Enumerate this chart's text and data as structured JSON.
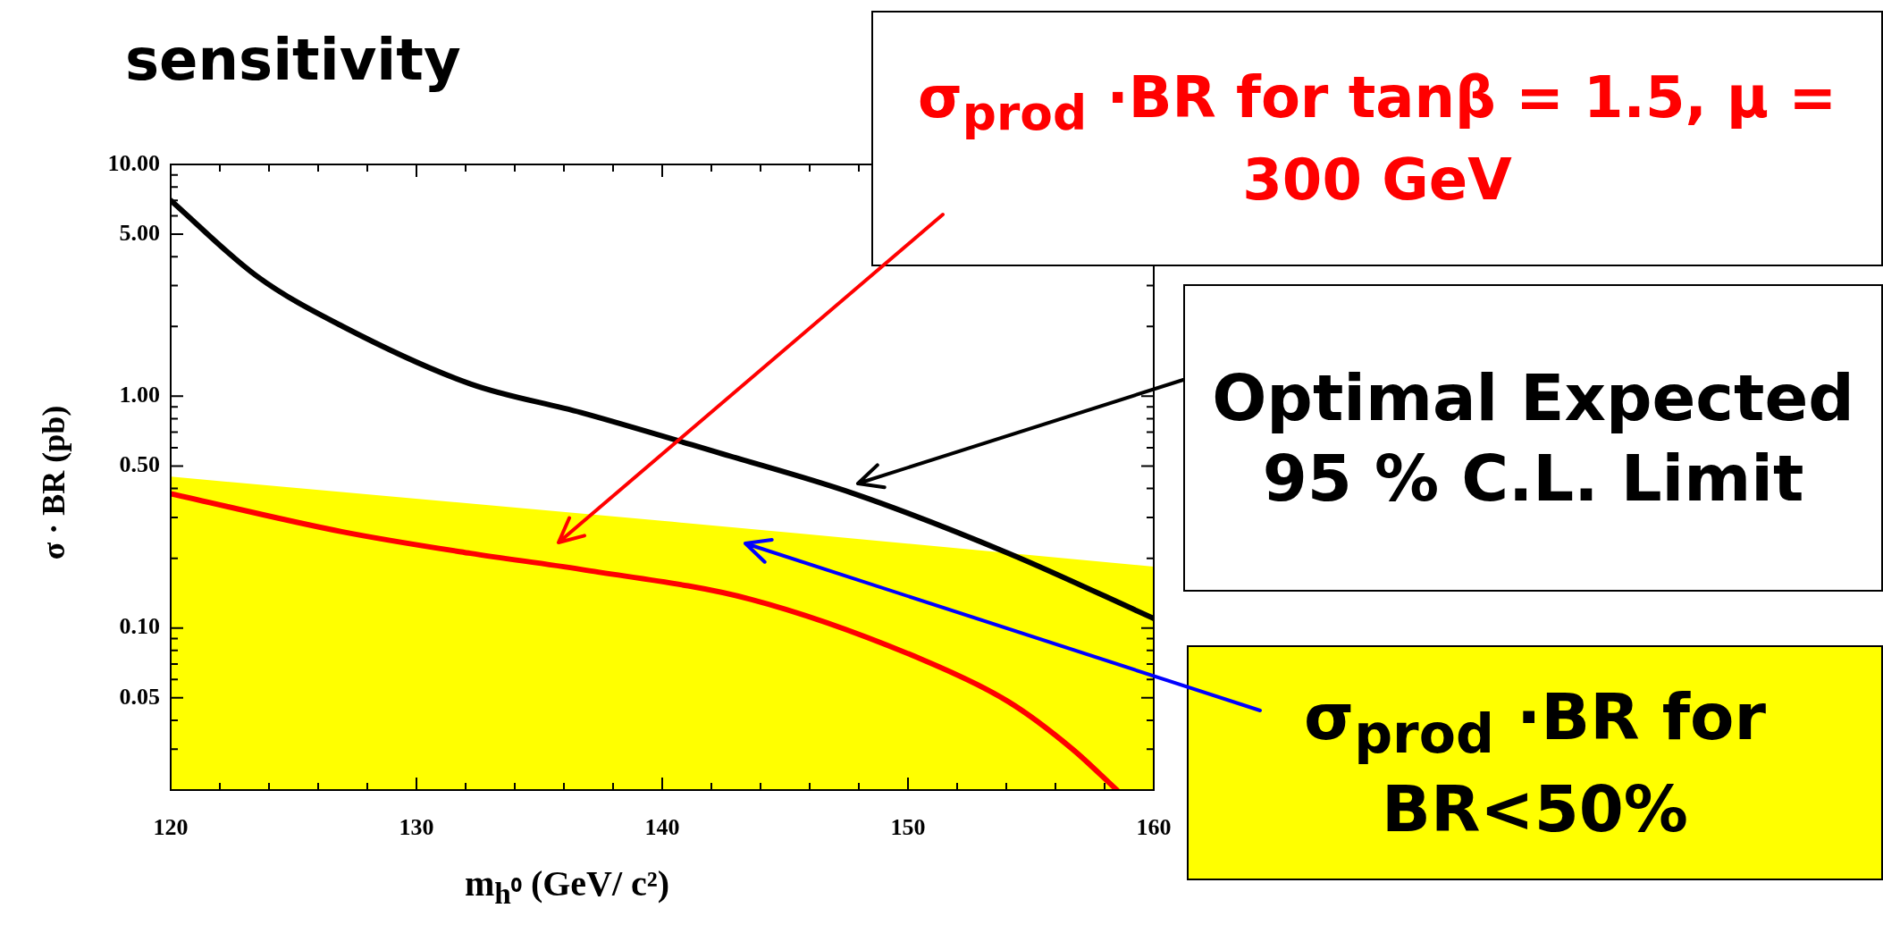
{
  "chart_data": {
    "type": "line",
    "title": "sensitivity",
    "xlabel": "m$_{h⁰}$ (GeV/ c²)",
    "ylabel": "σ · BR (pb)",
    "log": "y",
    "grid": false,
    "legend": false,
    "marker": "none",
    "line_style": "solid",
    "xlim": [
      120,
      160
    ],
    "ylim": [
      0.02,
      10
    ],
    "xticks": [
      120,
      {
        "value": 122,
        "label": null
      },
      {
        "value": 124,
        "label": null
      },
      {
        "value": 126,
        "label": null
      },
      {
        "value": 128,
        "label": null
      },
      130,
      {
        "value": 132,
        "label": null
      },
      {
        "value": 134,
        "label": null
      },
      {
        "value": 136,
        "label": null
      },
      {
        "value": 138,
        "label": null
      },
      140,
      {
        "value": 142,
        "label": null
      },
      {
        "value": 144,
        "label": null
      },
      {
        "value": 146,
        "label": null
      },
      {
        "value": 148,
        "label": null
      },
      150,
      {
        "value": 152,
        "label": null
      },
      {
        "value": 154,
        "label": null
      },
      {
        "value": 156,
        "label": null
      },
      {
        "value": 158,
        "label": null
      },
      160
    ],
    "yticks": [
      {
        "value": 0.03,
        "label": null
      },
      {
        "value": 0.04,
        "label": null
      },
      {
        "value": 0.05,
        "label": "0.05"
      },
      {
        "value": 0.06,
        "label": null
      },
      {
        "value": 0.07,
        "label": null
      },
      {
        "value": 0.08,
        "label": null
      },
      {
        "value": 0.09,
        "label": null
      },
      {
        "value": 0.1,
        "label": "0.10"
      },
      {
        "value": 0.2,
        "label": null
      },
      {
        "value": 0.3,
        "label": null
      },
      {
        "value": 0.4,
        "label": null
      },
      {
        "value": 0.5,
        "label": "0.50"
      },
      {
        "value": 0.6,
        "label": null
      },
      {
        "value": 0.7,
        "label": null
      },
      {
        "value": 0.8,
        "label": null
      },
      {
        "value": 0.9,
        "label": null
      },
      {
        "value": 1,
        "label": "1.00"
      },
      {
        "value": 2,
        "label": null
      },
      {
        "value": 3,
        "label": null
      },
      {
        "value": 4,
        "label": null
      },
      {
        "value": 5,
        "label": "5.00"
      },
      {
        "value": 6,
        "label": null
      },
      {
        "value": 7,
        "label": null
      },
      {
        "value": 8,
        "label": null
      },
      {
        "value": 9,
        "label": null
      },
      {
        "value": 10,
        "label": "10.00"
      }
    ],
    "series": [
      {
        "type": "area",
        "color": "#ffff00",
        "x": [
          120,
          140,
          160
        ],
        "values": [
          0.45,
          0.29,
          0.184
        ]
      },
      {
        "type": "line",
        "color": "#000000",
        "x": [
          120,
          123.5,
          127,
          132.2,
          136.7,
          142.3,
          147.8,
          154.1,
          160
        ],
        "values": [
          7.0,
          3.3,
          2.0,
          1.13,
          0.85,
          0.57,
          0.38,
          0.21,
          0.11
        ]
      },
      {
        "type": "line",
        "color": "#ff0000",
        "x": [
          120,
          127,
          132.2,
          136.7,
          143.6,
          150.6,
          154.1,
          156.7,
          158.5
        ],
        "values": [
          0.38,
          0.26,
          0.21,
          0.179,
          0.133,
          0.073,
          0.048,
          0.03,
          0.02
        ]
      }
    ],
    "annotations": [
      "σ$_{prod}$ ·BR for tanβ = 1.5, μ = 300 GeV",
      "Optimal Expected 95 % C.L. Limit",
      "σ$_{prod}$ ·BR for BR<50%"
    ]
  }
}
